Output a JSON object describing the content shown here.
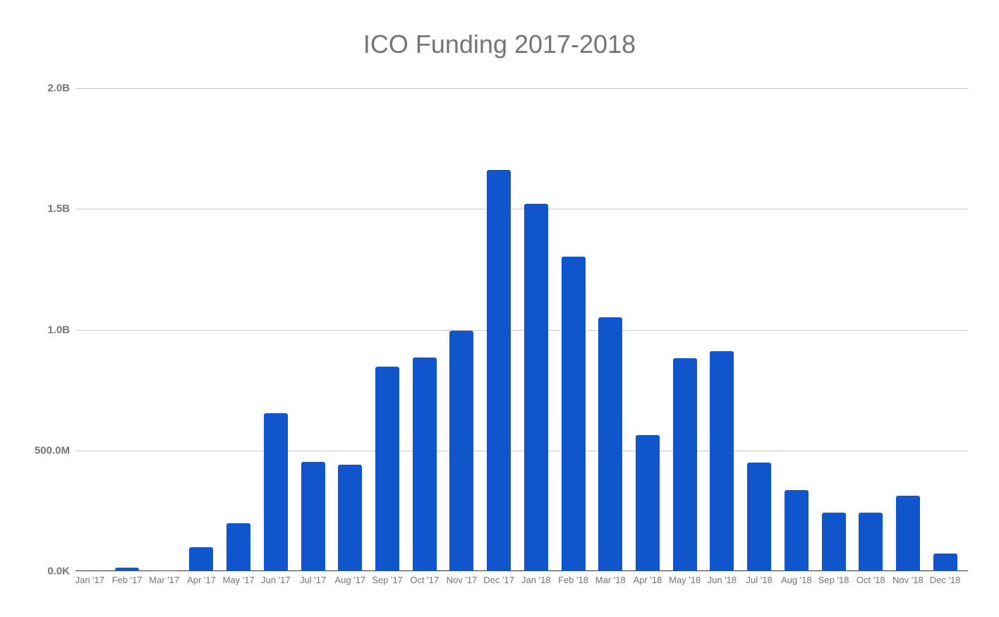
{
  "chart_data": {
    "type": "bar",
    "title": "ICO Funding 2017-2018",
    "xlabel": "",
    "ylabel": "",
    "ylim": [
      0,
      2000000000
    ],
    "grid": true,
    "legend": "none",
    "bar_color": "#1155cc",
    "y_ticks": [
      {
        "value": 0,
        "label": "0.0K"
      },
      {
        "value": 500000000,
        "label": "500.0M"
      },
      {
        "value": 1000000000,
        "label": "1.0B"
      },
      {
        "value": 1500000000,
        "label": "1.5B"
      },
      {
        "value": 2000000000,
        "label": "2.0B"
      }
    ],
    "categories": [
      "Jan '17",
      "Feb '17",
      "Mar '17",
      "Apr '17",
      "May '17",
      "Jun '17",
      "Jul '17",
      "Aug '17",
      "Sep '17",
      "Oct '17",
      "Nov '17",
      "Dec '17",
      "Jan '18",
      "Feb '18",
      "Mar '18",
      "Apr '18",
      "May '18",
      "Jun '18",
      "Jul '18",
      "Aug '18",
      "Sep '18",
      "Oct '18",
      "Nov '18",
      "Dec '18"
    ],
    "series": [
      {
        "name": "ICO Funding",
        "values": [
          0,
          15000000,
          3000000,
          100000000,
          200000000,
          654000000,
          453000000,
          441000000,
          847000000,
          885000000,
          996000000,
          1661000000,
          1521000000,
          1302000000,
          1051000000,
          564000000,
          882000000,
          911000000,
          450000000,
          336000000,
          242000000,
          242000000,
          312000000,
          73000000
        ]
      }
    ]
  }
}
